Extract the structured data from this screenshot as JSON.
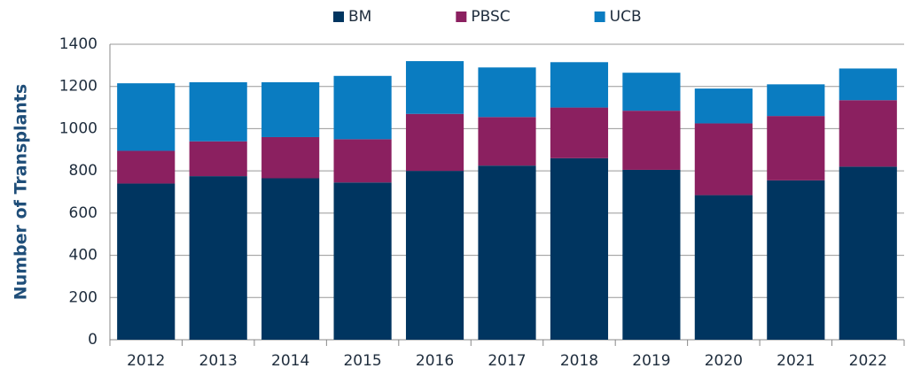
{
  "chart_data": {
    "type": "stacked-bar",
    "y_label": "Number of Transplants",
    "categories": [
      "2012",
      "2013",
      "2014",
      "2015",
      "2016",
      "2017",
      "2018",
      "2019",
      "2020",
      "2021",
      "2022"
    ],
    "series": [
      {
        "name": "BM",
        "color": "#003560",
        "values": [
          740,
          775,
          765,
          745,
          800,
          825,
          860,
          805,
          685,
          755,
          820
        ]
      },
      {
        "name": "PBSC",
        "color": "#8b2060",
        "values": [
          155,
          165,
          195,
          205,
          270,
          230,
          240,
          280,
          340,
          305,
          315
        ]
      },
      {
        "name": "UCB",
        "color": "#0a7cc1",
        "values": [
          320,
          280,
          260,
          300,
          250,
          235,
          215,
          180,
          165,
          150,
          150
        ]
      }
    ],
    "ylim": [
      0,
      1400
    ],
    "yticks": [
      0,
      200,
      400,
      600,
      800,
      1000,
      1200,
      1400
    ],
    "grid": true,
    "legend": "top"
  }
}
